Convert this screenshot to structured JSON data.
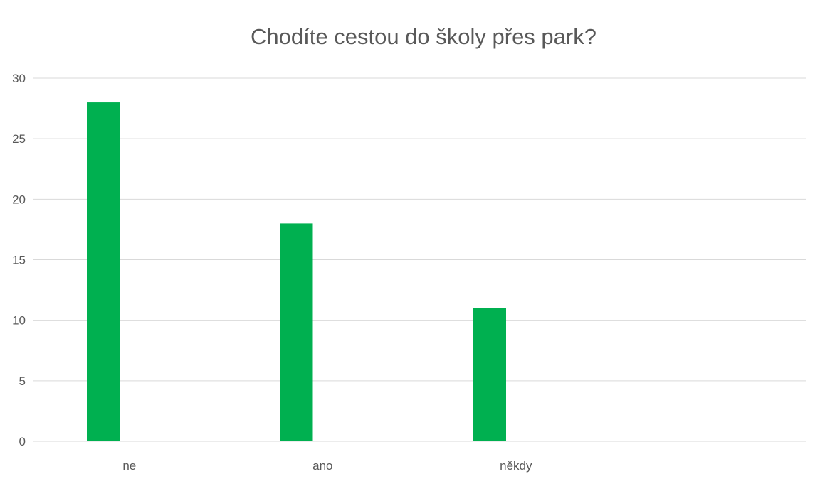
{
  "chart_data": {
    "type": "bar",
    "title": "Chodíte cestou do školy přes park?",
    "xlabel": "",
    "ylabel": "",
    "categories": [
      "ne",
      "ano",
      "někdy",
      ""
    ],
    "values": [
      28,
      18,
      11,
      null
    ],
    "yticks": [
      "0",
      "5",
      "10",
      "15",
      "20",
      "25",
      "30"
    ],
    "ylim": [
      0,
      30
    ],
    "grid": true,
    "bar_color": "#00b050",
    "grid_color": "#d9d9d9"
  }
}
